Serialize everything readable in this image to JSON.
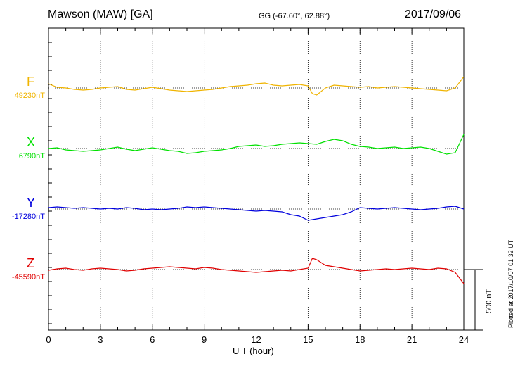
{
  "header": {
    "station": "Mawson (MAW)  [GA]",
    "coords": "GG (-67.60°,  62.88°)",
    "date": "2017/09/06"
  },
  "footer": {
    "plotted": "Plotted at 2017/10/07 01:32 UT",
    "scale": "500 nT"
  },
  "chart_data": {
    "type": "line",
    "xlabel": "U T (hour)",
    "ylabel": "",
    "xlim": [
      0,
      24
    ],
    "xticks": [
      0,
      3,
      6,
      9,
      12,
      15,
      18,
      21,
      24
    ],
    "xtick_labels": [
      "0",
      "3",
      "6",
      "9",
      "12",
      "15",
      "18",
      "21",
      "24"
    ],
    "scale_bar_nT": 500,
    "grid": true,
    "series": [
      {
        "name": "F",
        "baseline": "49230nT",
        "color": "#f0b400",
        "x": [
          0,
          0.5,
          1,
          1.5,
          2,
          2.5,
          3,
          3.5,
          4,
          4.5,
          5,
          5.5,
          6,
          6.5,
          7,
          7.5,
          8,
          8.5,
          9,
          9.5,
          10,
          10.5,
          11,
          11.5,
          12,
          12.5,
          13,
          13.5,
          14,
          14.5,
          15,
          15.25,
          15.5,
          16,
          16.5,
          17,
          17.5,
          18,
          18.5,
          19,
          19.5,
          20,
          20.5,
          21,
          21.5,
          22,
          22.5,
          23,
          23.5,
          24
        ],
        "values": [
          30,
          5,
          0,
          -10,
          -15,
          -10,
          0,
          5,
          10,
          -10,
          -15,
          -5,
          5,
          -5,
          -15,
          -20,
          -25,
          -20,
          -15,
          -10,
          0,
          10,
          15,
          20,
          30,
          35,
          20,
          15,
          20,
          25,
          15,
          -40,
          -50,
          0,
          20,
          15,
          10,
          5,
          10,
          0,
          5,
          10,
          5,
          0,
          -5,
          -10,
          -15,
          -20,
          0,
          80
        ]
      },
      {
        "name": "X",
        "baseline": "6790nT",
        "color": "#00e000",
        "x": [
          0,
          0.5,
          1,
          1.5,
          2,
          2.5,
          3,
          3.5,
          4,
          4.5,
          5,
          5.5,
          6,
          6.5,
          7,
          7.5,
          8,
          8.5,
          9,
          9.5,
          10,
          10.5,
          11,
          11.5,
          12,
          12.5,
          13,
          13.5,
          14,
          14.5,
          15,
          15.5,
          16,
          16.5,
          17,
          17.5,
          18,
          18.5,
          19,
          19.5,
          20,
          20.5,
          21,
          21.5,
          22,
          22.5,
          23,
          23.5,
          24
        ],
        "values": [
          0,
          5,
          -10,
          -15,
          -20,
          -15,
          -10,
          0,
          10,
          -5,
          -15,
          -5,
          5,
          -5,
          -15,
          -20,
          -35,
          -30,
          -20,
          -15,
          -10,
          0,
          15,
          20,
          25,
          15,
          20,
          30,
          35,
          40,
          35,
          30,
          50,
          65,
          55,
          30,
          15,
          10,
          0,
          5,
          10,
          0,
          5,
          10,
          0,
          -20,
          -40,
          -30,
          100
        ]
      },
      {
        "name": "Y",
        "baseline": "-17280nT",
        "color": "#0000dd",
        "x": [
          0,
          0.5,
          1,
          1.5,
          2,
          2.5,
          3,
          3.5,
          4,
          4.5,
          5,
          5.5,
          6,
          6.5,
          7,
          7.5,
          8,
          8.5,
          9,
          9.5,
          10,
          10.5,
          11,
          11.5,
          12,
          12.5,
          13,
          13.5,
          14,
          14.5,
          15,
          15.5,
          16,
          16.5,
          17,
          17.5,
          18,
          18.5,
          19,
          19.5,
          20,
          20.5,
          21,
          21.5,
          22,
          22.5,
          23,
          23.5,
          24
        ],
        "values": [
          10,
          15,
          10,
          5,
          10,
          5,
          0,
          5,
          0,
          10,
          5,
          -5,
          0,
          -5,
          0,
          5,
          15,
          10,
          15,
          10,
          5,
          0,
          -5,
          -10,
          -15,
          -10,
          -15,
          -20,
          -40,
          -50,
          -80,
          -70,
          -60,
          -50,
          -40,
          -20,
          10,
          5,
          0,
          5,
          10,
          5,
          0,
          -5,
          0,
          5,
          15,
          20,
          0
        ]
      },
      {
        "name": "Z",
        "baseline": "-45590nT",
        "color": "#e00000",
        "x": [
          0,
          0.5,
          1,
          1.5,
          2,
          2.5,
          3,
          3.5,
          4,
          4.5,
          5,
          5.5,
          6,
          6.5,
          7,
          7.5,
          8,
          8.5,
          9,
          9.5,
          10,
          10.5,
          11,
          11.5,
          12,
          12.5,
          13,
          13.5,
          14,
          14.5,
          15,
          15.25,
          15.5,
          16,
          16.5,
          17,
          17.5,
          18,
          18.5,
          19,
          19.5,
          20,
          20.5,
          21,
          21.5,
          22,
          22.5,
          23,
          23.5,
          24
        ],
        "values": [
          -5,
          5,
          10,
          0,
          -5,
          5,
          10,
          5,
          0,
          -10,
          -5,
          5,
          10,
          15,
          20,
          15,
          10,
          5,
          15,
          10,
          0,
          -5,
          -10,
          -15,
          -20,
          -15,
          -10,
          -5,
          -10,
          0,
          10,
          80,
          70,
          30,
          20,
          10,
          0,
          -10,
          -5,
          0,
          5,
          0,
          5,
          10,
          5,
          0,
          10,
          5,
          -20,
          -100
        ]
      }
    ]
  }
}
